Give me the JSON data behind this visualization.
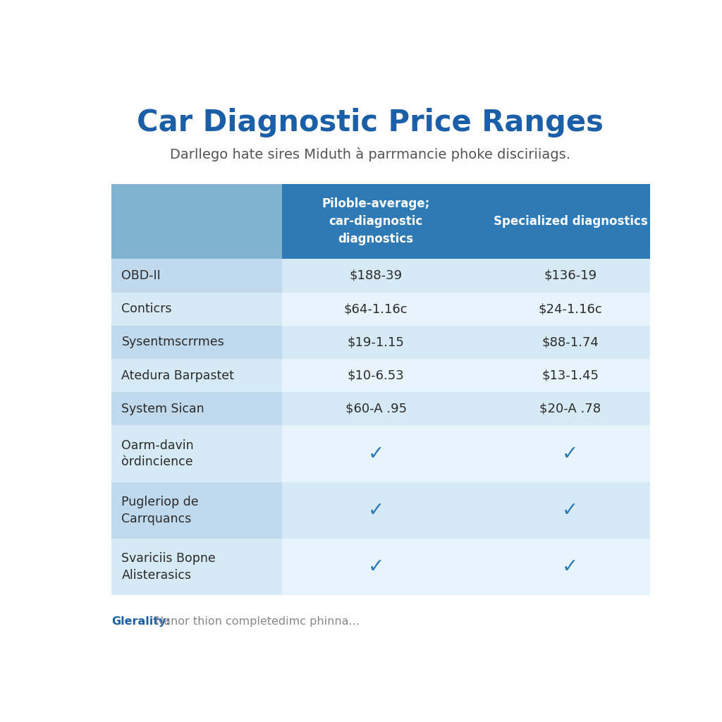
{
  "title": "Car Diagnostic Price Ranges",
  "subtitle": "Darllego hate sires Miduth à parrmancie phoke disciriiags.",
  "col2_header": "Piloble-average;\ncar-diagnostic\ndiagnostics",
  "col3_header": "Specialized diagnostics",
  "rows": [
    {
      "label": "OBD-II",
      "col2": "$188-39",
      "col3": "$136-19",
      "type": "value",
      "multiline": false
    },
    {
      "label": "Conticrs",
      "col2": "$64-1.16c",
      "col3": "$24-1.16c",
      "type": "value",
      "multiline": false
    },
    {
      "label": "Sysentmscrrmes",
      "col2": "$19-1.15",
      "col3": "$88-1.74",
      "type": "value",
      "multiline": false
    },
    {
      "label": "Atedura Barpastet",
      "col2": "$10-6.53",
      "col3": "$13-1.45",
      "type": "value",
      "multiline": false
    },
    {
      "label": "System Sican",
      "col2": "$60-A .95",
      "col3": "$20-A .78",
      "type": "value",
      "multiline": false
    },
    {
      "label": "Oarm-davin\nòrdincience",
      "col2": "✓",
      "col3": "✓",
      "type": "check",
      "multiline": true
    },
    {
      "label": "Pugleriop de\nCarrquancs",
      "col2": "✓",
      "col3": "✓",
      "type": "check",
      "multiline": true
    },
    {
      "label": "Svariciis Bopne\nAlisterasics",
      "col2": "✓",
      "col3": "✓",
      "type": "check",
      "multiline": true
    }
  ],
  "footer_label": "Glerality:",
  "footer_text": "Nanor thion completedimc phinna...",
  "bg_color": "#ffffff",
  "header_col1_color": "#7fb3d0",
  "header_col2_color": "#2d7ab6",
  "header_col3_color": "#2d7ab6",
  "label_col_light": "#d6eaf5",
  "label_col_dark": "#c0d9ec",
  "cell_light": "#e8f4fb",
  "cell_dark": "#d6eaf5",
  "title_color": "#1a5fa8",
  "subtitle_color": "#555555",
  "header_text_color": "#ffffff",
  "body_text_color": "#2a2a2a",
  "check_color": "#2d7ab6",
  "footer_label_color": "#1a5fa8",
  "footer_text_color": "#888888"
}
